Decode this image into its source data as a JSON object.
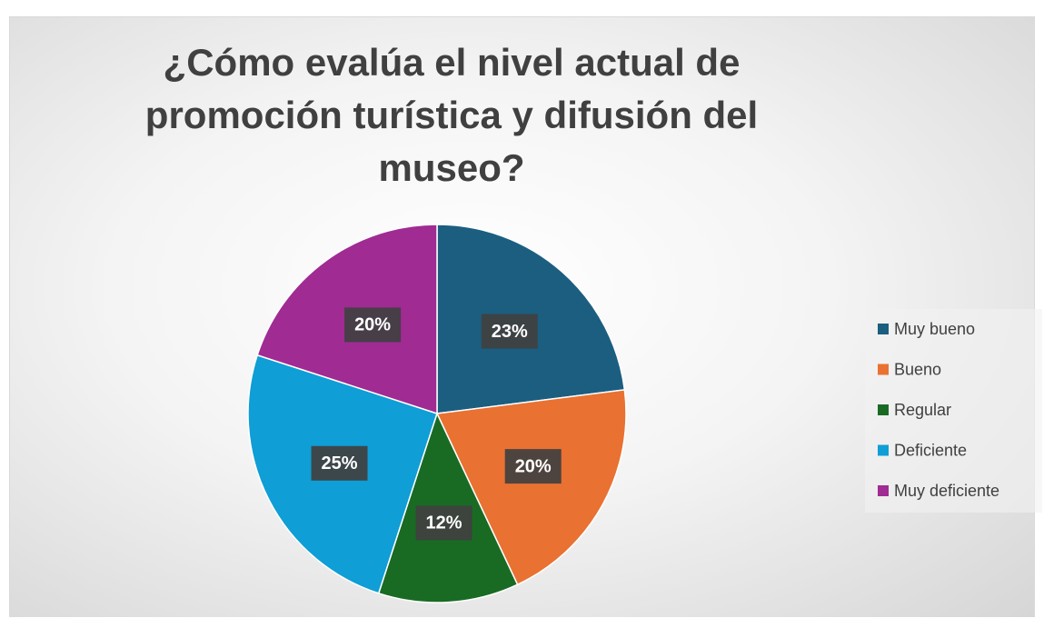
{
  "chart_data": {
    "type": "pie",
    "title": "¿Cómo evalúa el nivel actual de promoción turística y difusión del museo?",
    "categories": [
      "Muy bueno",
      "Bueno",
      "Regular",
      "Deficiente",
      "Muy deficiente"
    ],
    "values": [
      23,
      20,
      12,
      25,
      20
    ],
    "value_labels": [
      "23%",
      "20%",
      "12%",
      "25%",
      "20%"
    ],
    "colors": [
      "#1b5e80",
      "#e97132",
      "#196b24",
      "#0f9ed5",
      "#a02b93"
    ],
    "legend": "right"
  }
}
